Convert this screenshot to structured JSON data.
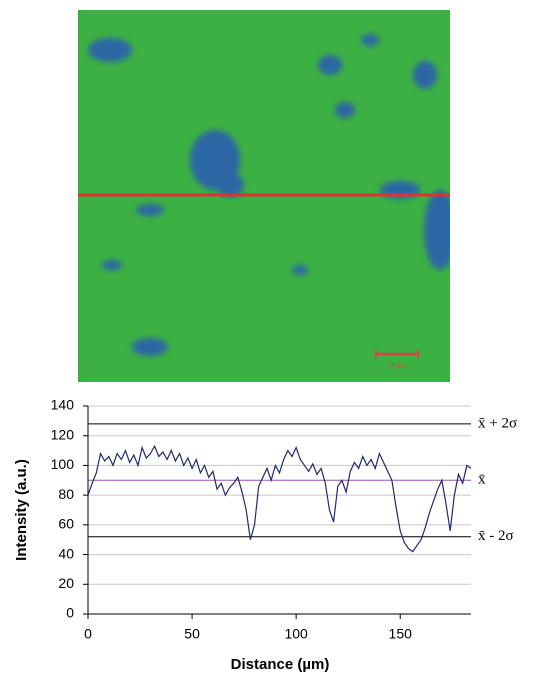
{
  "image": {
    "scale_bar_label": "20 µm"
  },
  "chart_data": {
    "type": "line",
    "y_label": "Intensity (a.u.)",
    "x_label": "Distance (µm)",
    "color": "#1f2a6e",
    "x": [
      0,
      2,
      4,
      6,
      8,
      10,
      12,
      14,
      16,
      18,
      20,
      22,
      24,
      26,
      28,
      30,
      32,
      34,
      36,
      38,
      40,
      42,
      44,
      46,
      48,
      50,
      52,
      54,
      56,
      58,
      60,
      62,
      64,
      66,
      68,
      70,
      72,
      74,
      76,
      78,
      80,
      82,
      84,
      86,
      88,
      90,
      92,
      94,
      96,
      98,
      100,
      102,
      104,
      106,
      108,
      110,
      112,
      114,
      116,
      118,
      120,
      122,
      124,
      126,
      128,
      130,
      132,
      134,
      136,
      138,
      140,
      142,
      144,
      146,
      148,
      150,
      152,
      154,
      156,
      158,
      160,
      162,
      164,
      166,
      168,
      170,
      172,
      174,
      176,
      178,
      180,
      182,
      184
    ],
    "values": [
      80,
      88,
      95,
      108,
      103,
      106,
      100,
      108,
      104,
      110,
      102,
      107,
      100,
      112,
      105,
      108,
      113,
      106,
      109,
      104,
      110,
      103,
      108,
      100,
      105,
      98,
      104,
      95,
      100,
      92,
      96,
      84,
      88,
      80,
      85,
      88,
      92,
      82,
      70,
      50,
      60,
      86,
      92,
      98,
      90,
      100,
      95,
      104,
      110,
      106,
      112,
      104,
      100,
      96,
      101,
      94,
      98,
      88,
      70,
      62,
      86,
      90,
      82,
      96,
      102,
      98,
      106,
      100,
      104,
      98,
      108,
      102,
      96,
      90,
      72,
      56,
      48,
      44,
      42,
      46,
      50,
      58,
      68,
      76,
      84,
      90,
      74,
      56,
      80,
      94,
      88,
      100,
      98
    ],
    "xlim": [
      0,
      184
    ],
    "xticks": [
      0,
      50,
      100,
      150
    ],
    "ylim": [
      0,
      140
    ],
    "yticks": [
      0,
      20,
      40,
      60,
      80,
      100,
      120,
      140
    ],
    "grid": true,
    "reference_lines": [
      {
        "value": 128,
        "label": "x̄  + 2σ",
        "color": "#000000"
      },
      {
        "value": 90,
        "label": "x̄",
        "color": "#a050b0"
      },
      {
        "value": 52,
        "label": "x̄  - 2σ",
        "color": "#000000"
      }
    ]
  }
}
